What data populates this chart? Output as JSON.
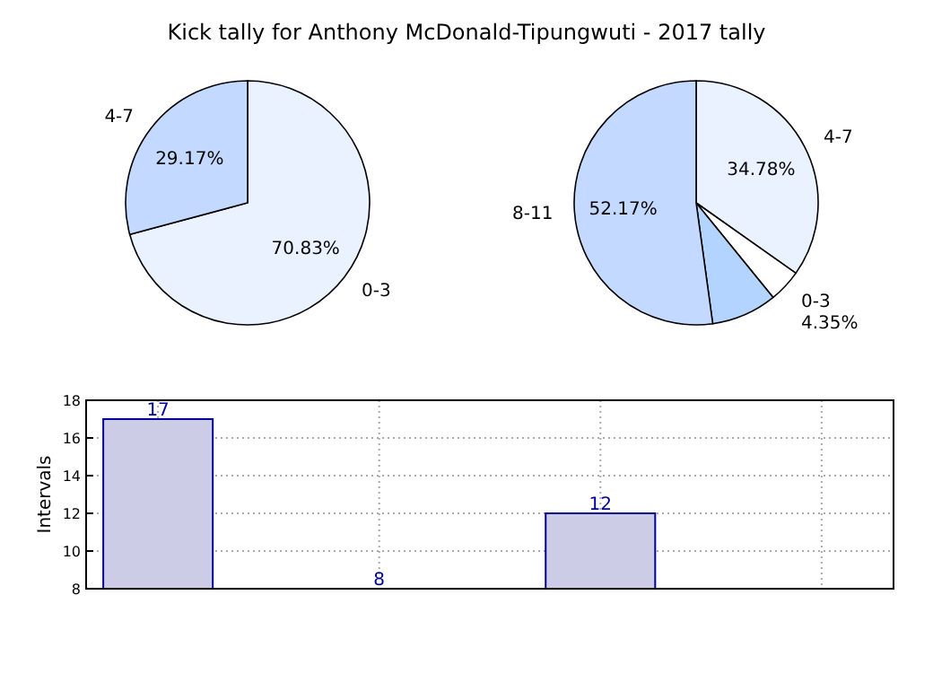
{
  "chart_data": [
    {
      "type": "pie",
      "title": "Kick tally for Anthony McDonald-Tipungwuti - 2017 tally",
      "categories": [
        "0-3",
        "4-7"
      ],
      "values": [
        70.83,
        29.17
      ],
      "value_labels": [
        "70.83%",
        "29.17%"
      ],
      "colors": [
        "#eaf2ff",
        "#c4d9ff"
      ]
    },
    {
      "type": "pie",
      "categories": [
        "4-7",
        "0-3",
        null,
        "8-11"
      ],
      "values": [
        34.78,
        4.35,
        8.7,
        52.17
      ],
      "value_labels": [
        "34.78%",
        "4.35%",
        null,
        "52.17%"
      ],
      "colors": [
        "#eaf2ff",
        "#ffffff",
        "#b3d4ff",
        "#c4d9ff"
      ]
    },
    {
      "type": "bar",
      "ylabel": "Intervals",
      "categories": [
        null,
        null,
        null,
        null
      ],
      "values": [
        17,
        8,
        12,
        null
      ],
      "color": "#ccccE6",
      "ylim": [
        8,
        18
      ],
      "yticks": [
        8,
        10,
        12,
        14,
        16,
        18
      ],
      "grid": true,
      "data_labels": true
    }
  ]
}
